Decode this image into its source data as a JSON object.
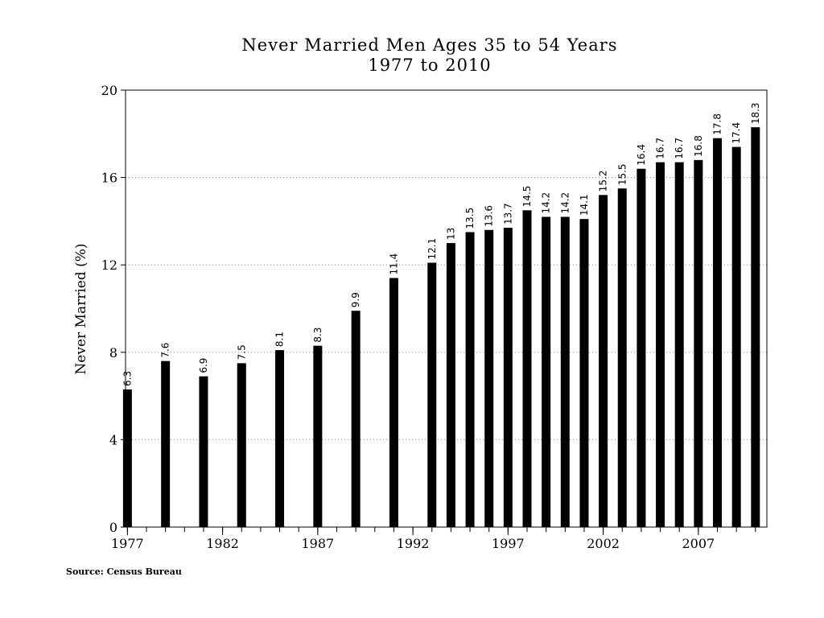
{
  "chart_data": {
    "type": "bar",
    "title": "Never Married Men Ages 35 to 54 Years",
    "subtitle": "1977 to 2010",
    "xlabel": "",
    "ylabel": "Never Married (%)",
    "ylim": [
      0,
      20
    ],
    "yticks": [
      "0",
      "4",
      "8",
      "12",
      "16",
      "20"
    ],
    "xlim": [
      1976.9,
      2010.6
    ],
    "xticks": [
      "1977",
      "1982",
      "1987",
      "1992",
      "1997",
      "2002",
      "2007"
    ],
    "grid": "horizontal-dotted",
    "bar_color": "#000000",
    "x": [
      1977,
      1979,
      1981,
      1983,
      1985,
      1987,
      1989,
      1991,
      1993,
      1994,
      1995,
      1996,
      1997,
      1998,
      1999,
      2000,
      2001,
      2002,
      2003,
      2004,
      2005,
      2006,
      2007,
      2008,
      2009,
      2010
    ],
    "values": [
      6.3,
      7.6,
      6.9,
      7.5,
      8.1,
      8.3,
      9.9,
      11.4,
      12.1,
      13,
      13.5,
      13.6,
      13.7,
      14.5,
      14.2,
      14.2,
      14.1,
      15.2,
      15.5,
      16.4,
      16.7,
      16.7,
      16.8,
      17.8,
      17.4,
      18.3
    ],
    "labels": [
      "6.3",
      "7.6",
      "6.9",
      "7.5",
      "8.1",
      "8.3",
      "9.9",
      "11.4",
      "12.1",
      "13",
      "13.5",
      "13.6",
      "13.7",
      "14.5",
      "14.2",
      "14.2",
      "14.1",
      "15.2",
      "15.5",
      "16.4",
      "16.7",
      "16.7",
      "16.8",
      "17.8",
      "17.4",
      "18.3"
    ]
  },
  "source": "Source: Census Bureau"
}
